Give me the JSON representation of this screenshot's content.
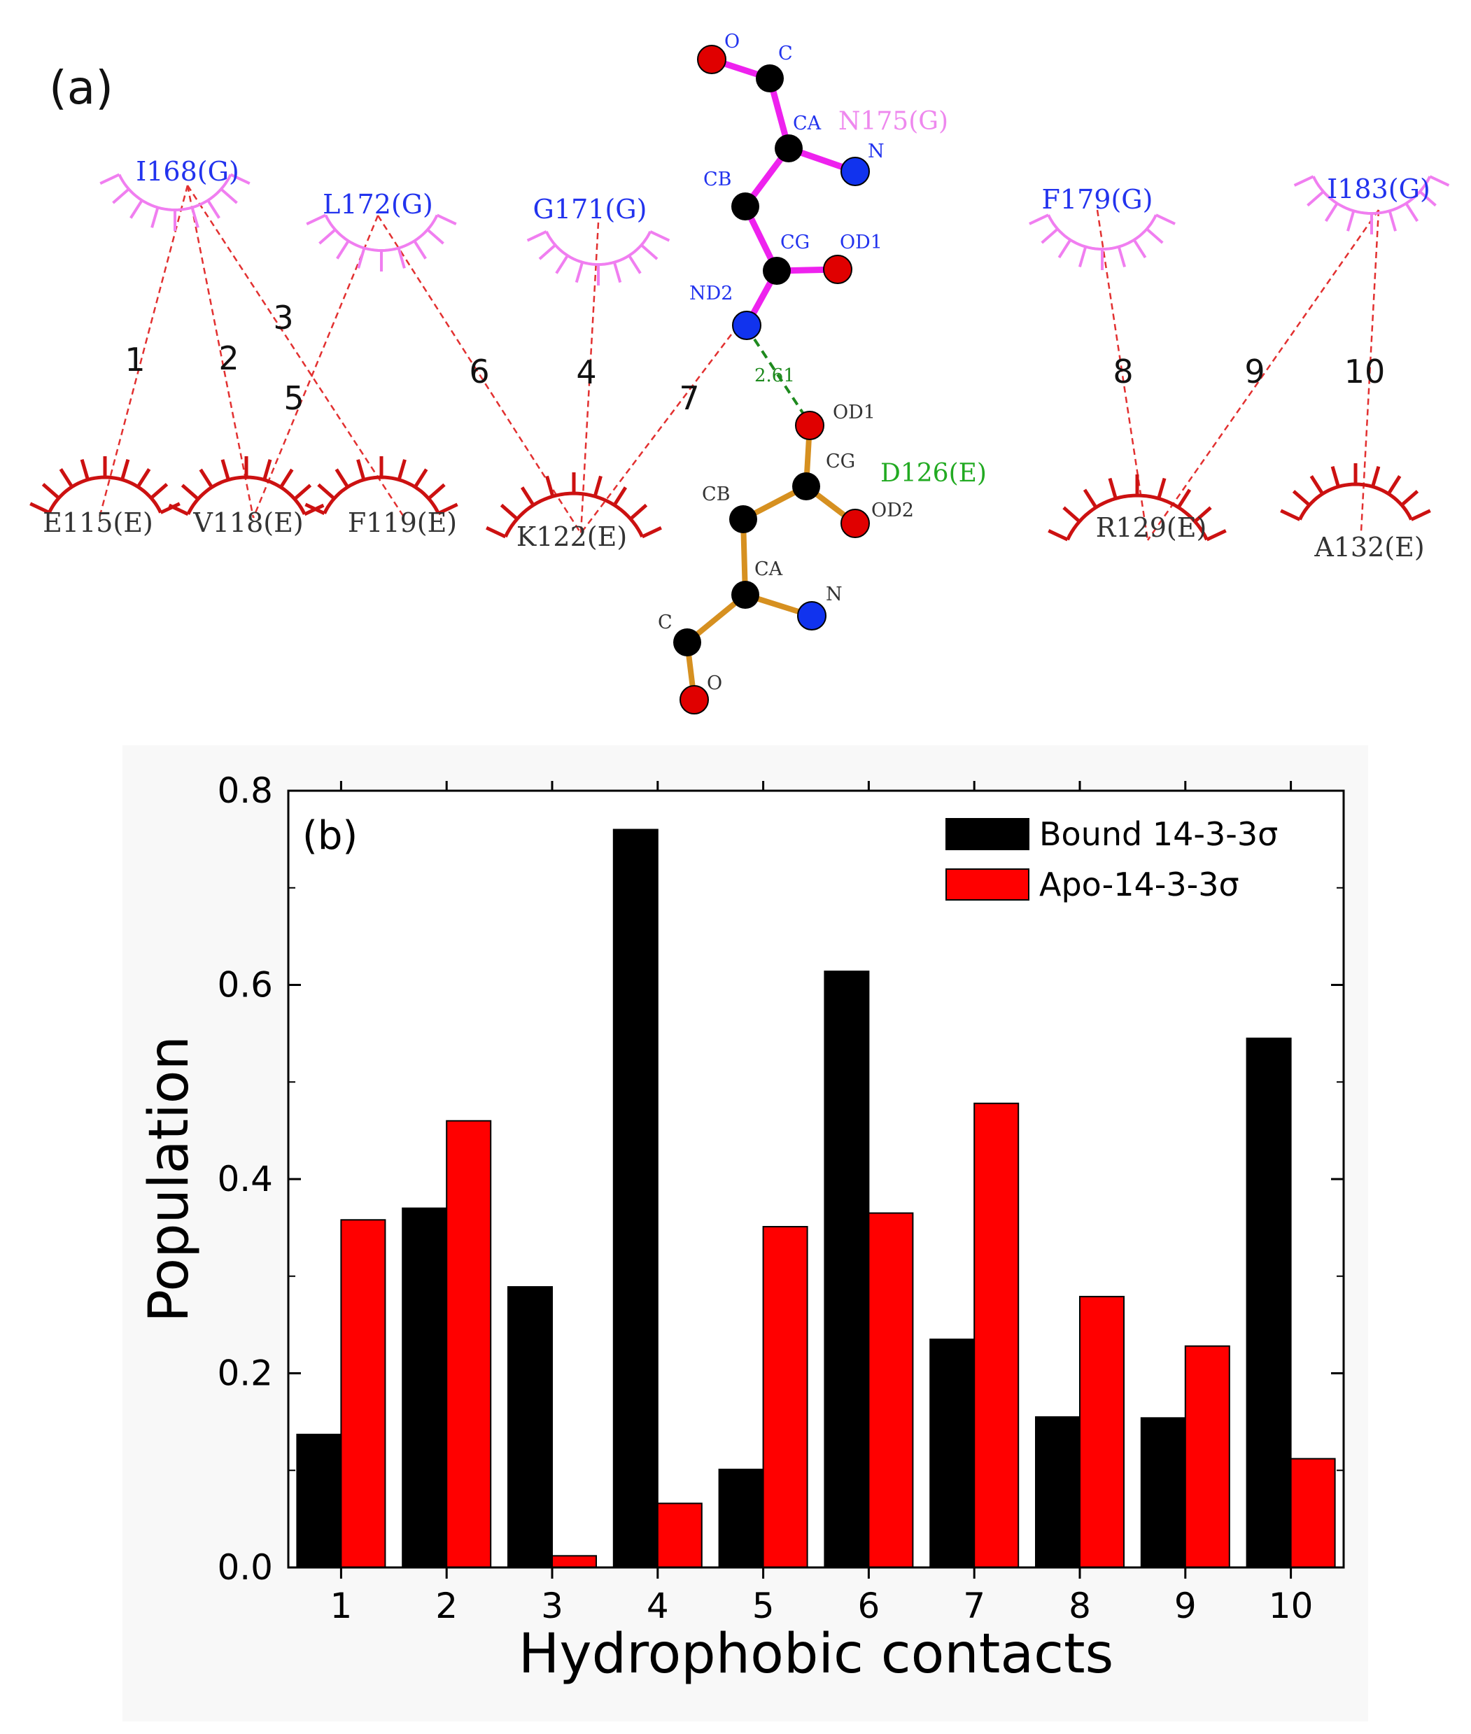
{
  "panel_a": {
    "label": "(a)",
    "ligand_residues": [
      {
        "id": "I168",
        "label": "I168(G)"
      },
      {
        "id": "L172",
        "label": "L172(G)"
      },
      {
        "id": "G171",
        "label": "G171(G)"
      },
      {
        "id": "F179",
        "label": "F179(G)"
      },
      {
        "id": "I183",
        "label": "I183(G)"
      }
    ],
    "protein_residues": [
      {
        "id": "E115",
        "label": "E115(E)"
      },
      {
        "id": "V118",
        "label": "V118(E)"
      },
      {
        "id": "F119",
        "label": "F119(E)"
      },
      {
        "id": "K122",
        "label": "K122(E)"
      },
      {
        "id": "R129",
        "label": "R129(E)"
      },
      {
        "id": "A132",
        "label": "A132(E)"
      }
    ],
    "contacts": [
      {
        "num": "1",
        "from": "I168",
        "to": "E115"
      },
      {
        "num": "2",
        "from": "I168",
        "to": "V118"
      },
      {
        "num": "3",
        "from": "I168",
        "to": "F119"
      },
      {
        "num": "4",
        "from": "G171",
        "to": "K122"
      },
      {
        "num": "5",
        "from": "L172",
        "to": "V118"
      },
      {
        "num": "6",
        "from": "L172",
        "to": "K122"
      },
      {
        "num": "7",
        "from": "ND2",
        "to": "K122"
      },
      {
        "num": "8",
        "from": "F179",
        "to": "R129"
      },
      {
        "num": "9",
        "from": "I183",
        "to": "R129"
      },
      {
        "num": "10",
        "from": "I183",
        "to": "A132"
      }
    ],
    "residue_n175": {
      "label": "N175(G)",
      "atoms": {
        "O": "O",
        "C": "C",
        "CA": "CA",
        "N": "N",
        "CB": "CB",
        "CG": "CG",
        "OD1": "OD1",
        "ND2": "ND2"
      }
    },
    "residue_d126": {
      "label": "D126(E)",
      "atoms": {
        "OD1": "OD1",
        "CG": "CG",
        "OD2": "OD2",
        "CB": "CB",
        "CA": "CA",
        "N": "N",
        "C": "C",
        "O": "O"
      }
    },
    "hbond_distance": "2.61",
    "colors": {
      "ligand_arc": "#f07ef0",
      "protein_arc": "#cc1111",
      "ligand_label": "#2233ee",
      "protein_label": "#333333",
      "n175_label": "#ee88ee",
      "d126_label": "#22aa22",
      "contact_line": "#e23030",
      "hbond": "#1e8a1e",
      "n175_bond": "#ee22ee",
      "d126_bond": "#d69020",
      "carbon": "#000000",
      "oxygen": "#e00000",
      "nitrogen": "#1133ee"
    }
  },
  "chart_data": {
    "type": "bar",
    "panel_label": "(b)",
    "xlabel": "Hydrophobic contacts",
    "ylabel": "Population",
    "categories": [
      "1",
      "2",
      "3",
      "4",
      "5",
      "6",
      "7",
      "8",
      "9",
      "10"
    ],
    "series": [
      {
        "name": "Bound 14-3-3σ",
        "color": "#000000",
        "values": [
          0.137,
          0.37,
          0.289,
          0.76,
          0.101,
          0.614,
          0.235,
          0.155,
          0.154,
          0.545
        ]
      },
      {
        "name": "Apo-14-3-3σ",
        "color": "#ff0000",
        "values": [
          0.358,
          0.46,
          0.012,
          0.066,
          0.351,
          0.365,
          0.478,
          0.279,
          0.228,
          0.112
        ]
      }
    ],
    "ylim": [
      0,
      0.8
    ],
    "yticks": [
      "0.0",
      "0.2",
      "0.4",
      "0.6",
      "0.8"
    ],
    "legend_position": "top-right",
    "grid": false
  }
}
